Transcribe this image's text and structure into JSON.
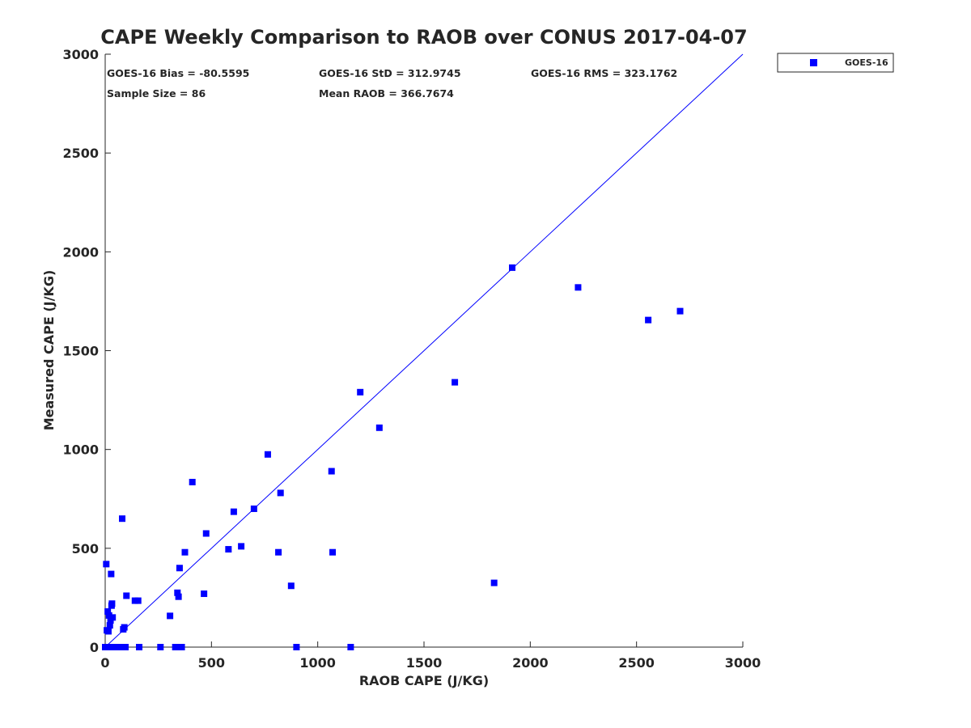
{
  "chart_data": {
    "type": "scatter",
    "title": "CAPE Weekly Comparison to RAOB over CONUS 2017-04-07",
    "xlabel": "RAOB CAPE (J/KG)",
    "ylabel": "Measured CAPE (J/KG)",
    "xlim": [
      0,
      3000
    ],
    "ylim": [
      0,
      3000
    ],
    "xticks": [
      0,
      500,
      1000,
      1500,
      2000,
      2500,
      3000
    ],
    "yticks": [
      0,
      500,
      1000,
      1500,
      2000,
      2500,
      3000
    ],
    "grid": false,
    "legend_position": "outside-top-right",
    "reference_line": {
      "name": "1:1 line",
      "from": [
        0,
        0
      ],
      "to": [
        3000,
        3000
      ],
      "color": "#0000ff"
    },
    "stats": [
      {
        "label": "GOES-16 Bias = -80.5595"
      },
      {
        "label": "GOES-16 StD = 312.9745"
      },
      {
        "label": "GOES-16 RMS = 323.1762"
      },
      {
        "label": "Sample Size = 86"
      },
      {
        "label": "Mean RAOB = 366.7674"
      }
    ],
    "series": [
      {
        "name": "GOES-16",
        "color": "#0000ff",
        "marker": "square",
        "x": [
          5,
          8,
          12,
          15,
          18,
          22,
          25,
          28,
          30,
          32,
          35,
          38,
          40,
          80,
          85,
          90,
          95,
          100,
          140,
          155,
          305,
          340,
          345,
          350,
          375,
          410,
          465,
          475,
          580,
          605,
          640,
          700,
          765,
          815,
          825,
          875,
          1065,
          1070,
          1200,
          1290,
          1645,
          1830,
          1915,
          2225,
          2555,
          2705,
          0,
          5,
          10,
          15,
          20,
          25,
          30,
          35,
          40,
          50,
          60,
          70,
          80,
          90,
          160,
          260,
          330,
          345,
          360,
          900,
          1155,
          2,
          4,
          6,
          8,
          10,
          12,
          14,
          16,
          18,
          22,
          26,
          30,
          36,
          45,
          55,
          65,
          75,
          85,
          95
        ],
        "y": [
          420,
          85,
          180,
          80,
          160,
          110,
          135,
          370,
          210,
          220,
          150,
          0,
          0,
          650,
          90,
          100,
          0,
          260,
          235,
          235,
          158,
          275,
          255,
          400,
          480,
          835,
          270,
          575,
          495,
          685,
          510,
          700,
          975,
          480,
          780,
          310,
          890,
          480,
          1290,
          1110,
          1340,
          325,
          1920,
          1820,
          1655,
          1700,
          0,
          0,
          0,
          0,
          0,
          0,
          0,
          0,
          0,
          0,
          0,
          0,
          0,
          0,
          0,
          0,
          0,
          0,
          0,
          0,
          0,
          0,
          0,
          0,
          0,
          0,
          0,
          0,
          0,
          0,
          0,
          0,
          0,
          0,
          0,
          0,
          0,
          0,
          0,
          0
        ]
      }
    ]
  }
}
